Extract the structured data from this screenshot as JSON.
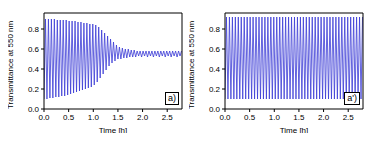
{
  "chart_data": [
    {
      "type": "line",
      "annotation": "a)",
      "x_label": "Time [h]",
      "y_label": "Transmittance at 550 nm",
      "color": "#3b3bd6",
      "xlim": [
        0,
        2.8
      ],
      "ylim": [
        0,
        0.96
      ],
      "xticks": [
        {
          "value": 0,
          "label": "0.0"
        },
        0.5,
        {
          "value": 1,
          "label": "1.0"
        },
        1.5,
        {
          "value": 2,
          "label": "2.0"
        },
        2.5
      ],
      "yticks": [
        {
          "value": 0,
          "label": "0.0"
        },
        0.2,
        0.4,
        0.6,
        0.8
      ],
      "x": [
        0,
        0.03,
        0.06,
        0.09,
        0.12,
        0.15,
        0.18,
        0.21,
        0.24,
        0.27,
        0.3,
        0.33,
        0.36,
        0.39,
        0.42,
        0.45,
        0.48,
        0.51,
        0.54,
        0.57,
        0.6,
        0.63,
        0.66,
        0.69,
        0.72,
        0.75,
        0.78,
        0.81,
        0.84,
        0.87,
        0.9,
        0.93,
        0.96,
        0.99,
        1.02,
        1.05,
        1.08,
        1.11,
        1.14,
        1.17,
        1.2,
        1.23,
        1.26,
        1.29,
        1.32,
        1.35,
        1.38,
        1.41,
        1.44,
        1.47,
        1.5,
        1.53,
        1.56,
        1.59,
        1.62,
        1.65,
        1.68,
        1.71,
        1.74,
        1.77,
        1.8,
        1.83,
        1.86,
        1.89,
        1.92,
        1.95,
        1.98,
        2.01,
        2.04,
        2.07,
        2.1,
        2.13,
        2.16,
        2.19,
        2.22,
        2.25,
        2.28,
        2.31,
        2.34,
        2.37,
        2.4,
        2.43,
        2.46,
        2.49,
        2.52,
        2.55,
        2.58,
        2.61,
        2.64,
        2.67,
        2.7,
        2.73,
        2.76,
        2.79
      ],
      "values": [
        0.1,
        0.9,
        0.1,
        0.9,
        0.11,
        0.9,
        0.11,
        0.9,
        0.12,
        0.89,
        0.12,
        0.89,
        0.13,
        0.89,
        0.13,
        0.89,
        0.14,
        0.88,
        0.15,
        0.88,
        0.16,
        0.88,
        0.17,
        0.87,
        0.18,
        0.87,
        0.19,
        0.86,
        0.2,
        0.86,
        0.21,
        0.85,
        0.22,
        0.85,
        0.24,
        0.84,
        0.27,
        0.82,
        0.31,
        0.79,
        0.35,
        0.76,
        0.39,
        0.73,
        0.43,
        0.7,
        0.46,
        0.67,
        0.48,
        0.64,
        0.5,
        0.62,
        0.5,
        0.61,
        0.51,
        0.6,
        0.51,
        0.6,
        0.52,
        0.59,
        0.52,
        0.59,
        0.52,
        0.58,
        0.53,
        0.58,
        0.52,
        0.58,
        0.53,
        0.58,
        0.52,
        0.58,
        0.53,
        0.58,
        0.52,
        0.58,
        0.53,
        0.58,
        0.52,
        0.58,
        0.53,
        0.58,
        0.52,
        0.58,
        0.53,
        0.58,
        0.52,
        0.58,
        0.53,
        0.58,
        0.52,
        0.58,
        0.53,
        0.58
      ]
    },
    {
      "type": "line",
      "annotation": "a')",
      "x_label": "Time [h]",
      "y_label": "Transmittance at 550 nm",
      "color": "#3b3bd6",
      "xlim": [
        0,
        2.8
      ],
      "ylim": [
        0,
        0.96
      ],
      "xticks": [
        {
          "value": 0,
          "label": "0.0"
        },
        0.5,
        {
          "value": 1,
          "label": "1.0"
        },
        1.5,
        {
          "value": 2,
          "label": "2.0"
        },
        2.5
      ],
      "yticks": [
        {
          "value": 0,
          "label": "0.0"
        },
        0.2,
        0.4,
        0.6,
        0.8
      ],
      "x": [
        0,
        0.03,
        0.06,
        0.09,
        0.12,
        0.15,
        0.18,
        0.21,
        0.24,
        0.27,
        0.3,
        0.33,
        0.36,
        0.39,
        0.42,
        0.45,
        0.48,
        0.51,
        0.54,
        0.57,
        0.6,
        0.63,
        0.66,
        0.69,
        0.72,
        0.75,
        0.78,
        0.81,
        0.84,
        0.87,
        0.9,
        0.93,
        0.96,
        0.99,
        1.02,
        1.05,
        1.08,
        1.11,
        1.14,
        1.17,
        1.2,
        1.23,
        1.26,
        1.29,
        1.32,
        1.35,
        1.38,
        1.41,
        1.44,
        1.47,
        1.5,
        1.53,
        1.56,
        1.59,
        1.62,
        1.65,
        1.68,
        1.71,
        1.74,
        1.77,
        1.8,
        1.83,
        1.86,
        1.89,
        1.92,
        1.95,
        1.98,
        2.01,
        2.04,
        2.07,
        2.1,
        2.13,
        2.16,
        2.19,
        2.22,
        2.25,
        2.28,
        2.31,
        2.34,
        2.37,
        2.4,
        2.43,
        2.46,
        2.49,
        2.52,
        2.55,
        2.58,
        2.61,
        2.64,
        2.67,
        2.7,
        2.73,
        2.76,
        2.79
      ],
      "values": [
        0.1,
        0.92,
        0.1,
        0.92,
        0.1,
        0.92,
        0.1,
        0.92,
        0.1,
        0.92,
        0.1,
        0.92,
        0.1,
        0.92,
        0.1,
        0.92,
        0.1,
        0.92,
        0.1,
        0.92,
        0.1,
        0.92,
        0.1,
        0.92,
        0.1,
        0.92,
        0.1,
        0.92,
        0.1,
        0.92,
        0.1,
        0.92,
        0.1,
        0.92,
        0.1,
        0.92,
        0.1,
        0.92,
        0.1,
        0.92,
        0.1,
        0.92,
        0.1,
        0.92,
        0.1,
        0.92,
        0.1,
        0.92,
        0.1,
        0.92,
        0.1,
        0.92,
        0.1,
        0.92,
        0.1,
        0.92,
        0.1,
        0.92,
        0.1,
        0.92,
        0.1,
        0.92,
        0.1,
        0.92,
        0.1,
        0.92,
        0.1,
        0.92,
        0.1,
        0.92,
        0.1,
        0.92,
        0.1,
        0.92,
        0.1,
        0.92,
        0.1,
        0.92,
        0.1,
        0.92,
        0.1,
        0.92,
        0.1,
        0.92,
        0.1,
        0.92,
        0.1,
        0.92,
        0.1,
        0.92,
        0.1,
        0.92,
        0.1,
        0.92
      ]
    }
  ]
}
